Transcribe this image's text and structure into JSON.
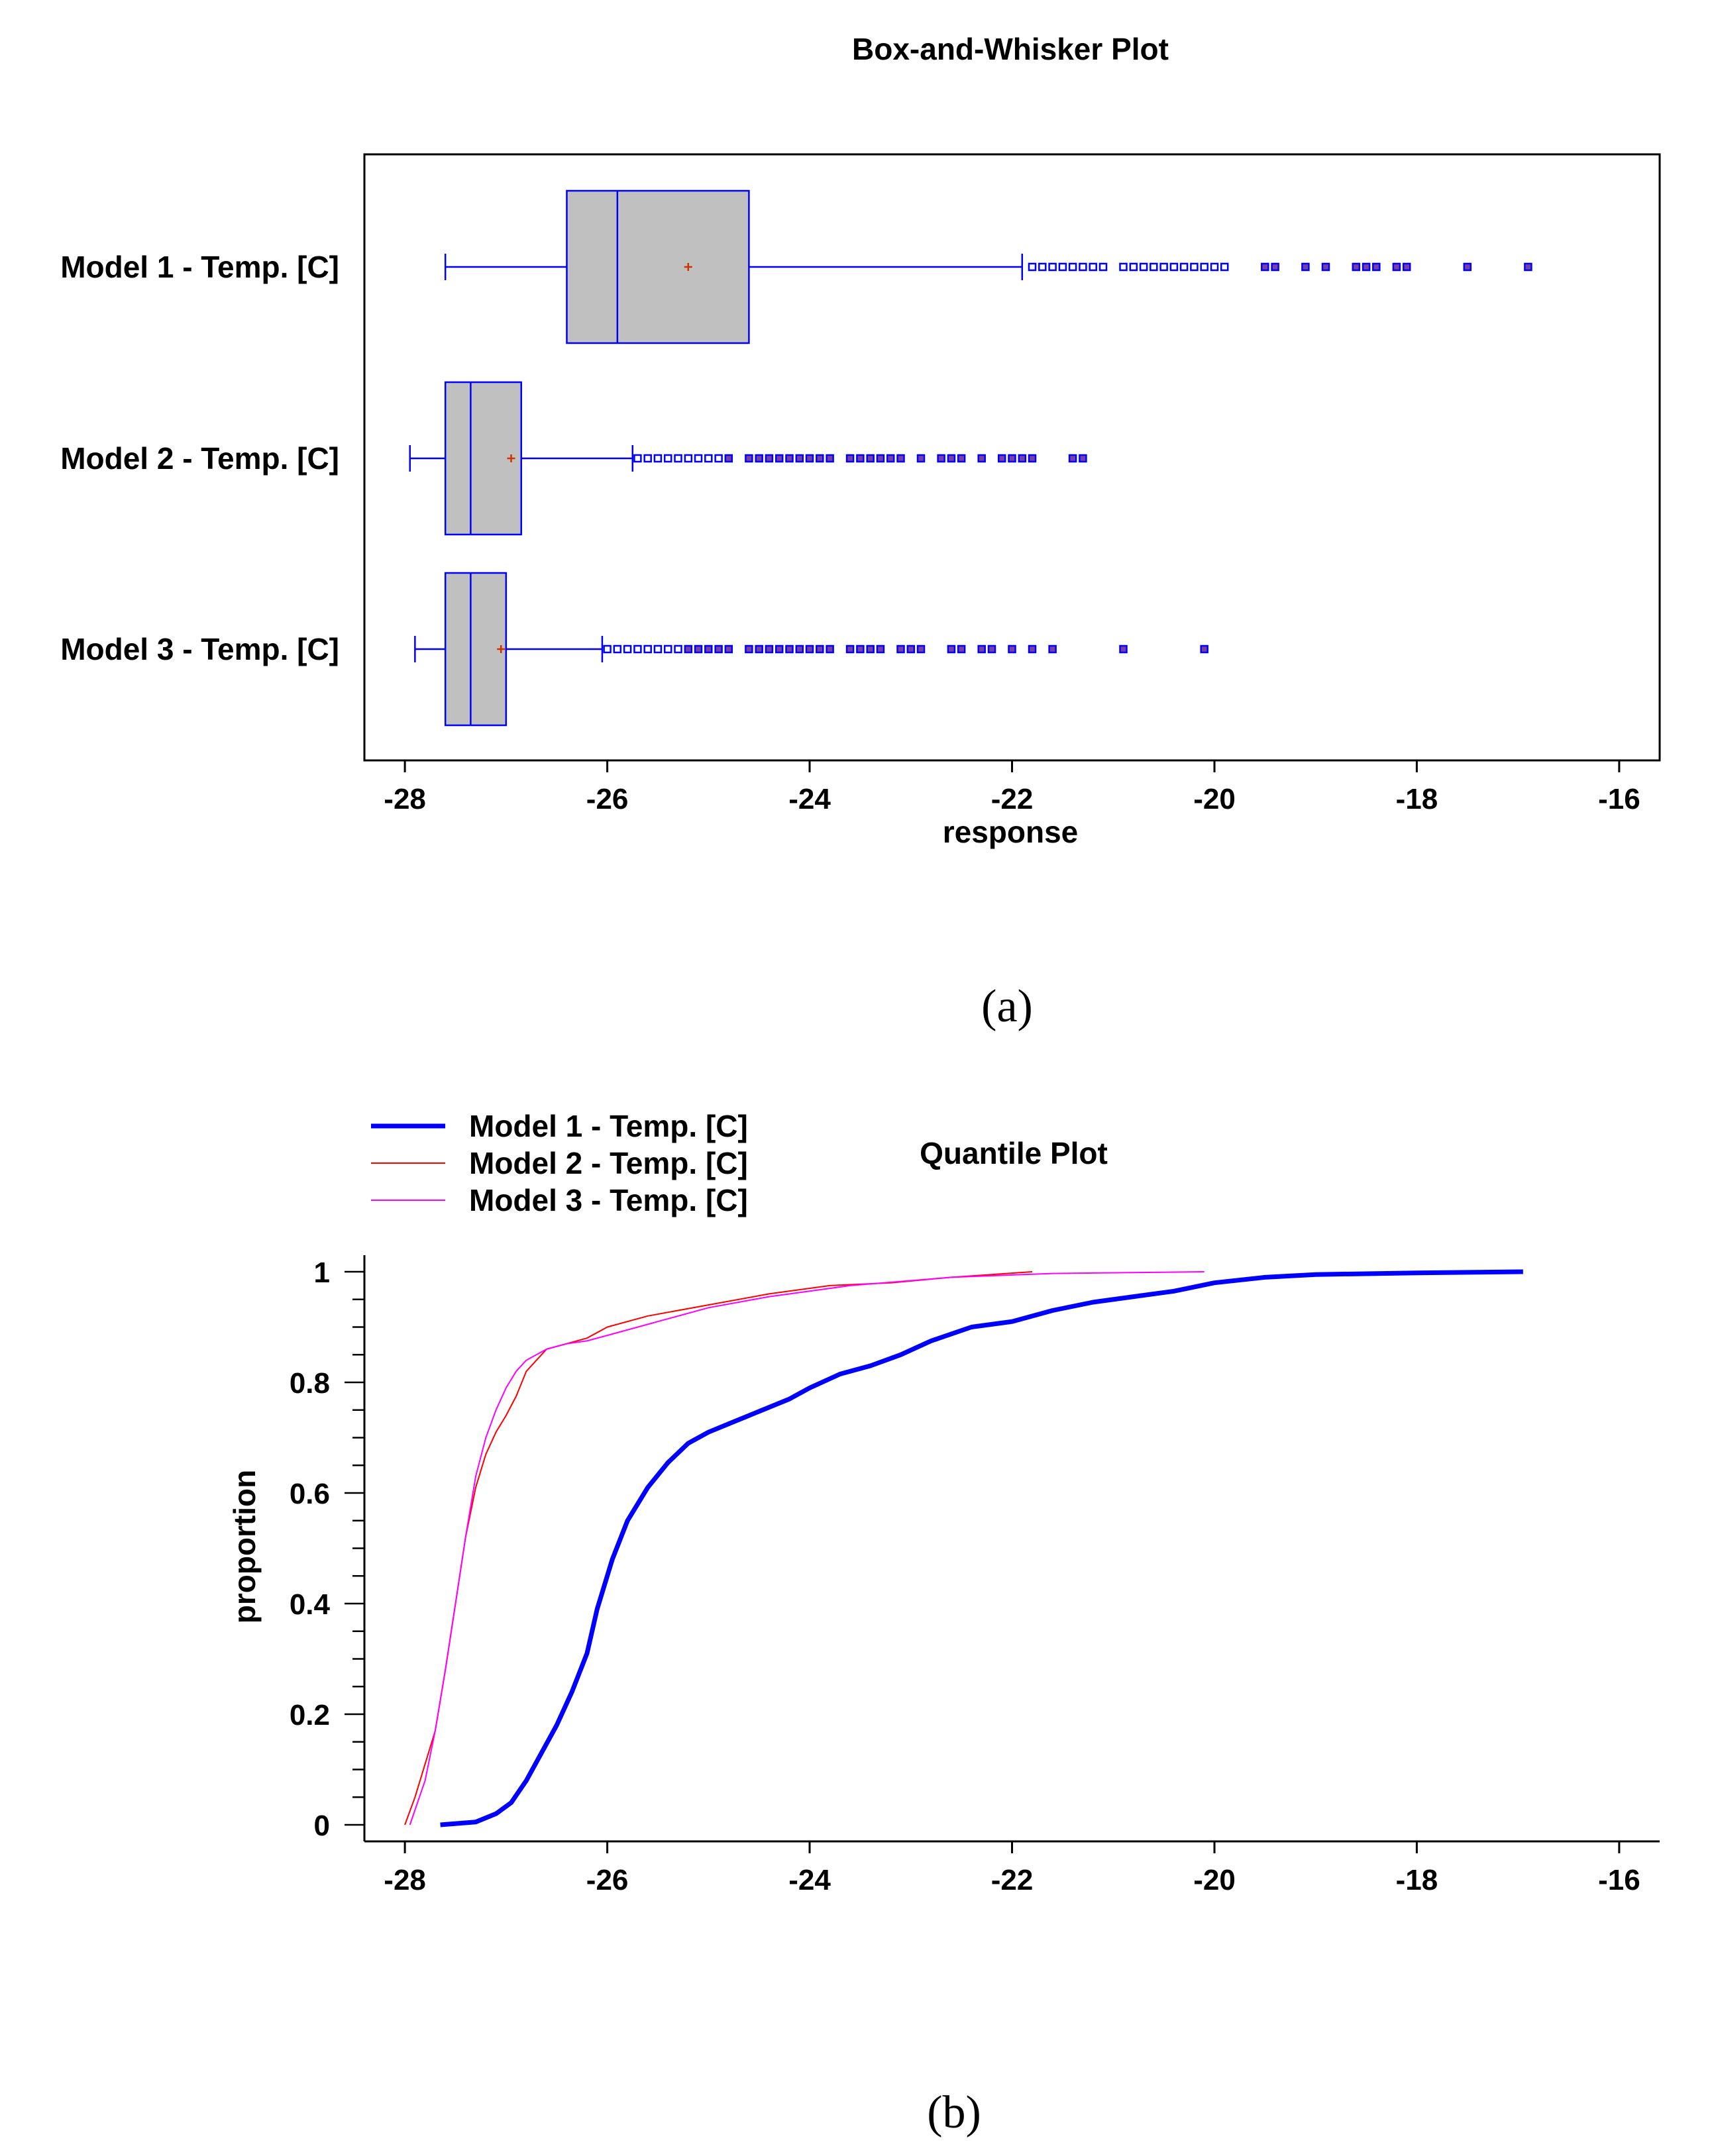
{
  "captions": {
    "a": "(a)",
    "b": "(b)"
  },
  "chart_data": [
    {
      "type": "box",
      "title": "Box-and-Whisker Plot",
      "xlabel": "response",
      "xlim": [
        -28.4,
        -15.6
      ],
      "xticks": [
        -28,
        -26,
        -24,
        -22,
        -20,
        -18,
        -16
      ],
      "colors": {
        "box_fill": "#c0c0c0",
        "box_stroke": "#0000ff",
        "mean_marker": "#cc3300",
        "outlier": "#0000ff",
        "outlier_far": "#7a3fa0"
      },
      "groups": [
        {
          "label": "Model 1 - Temp. [C]",
          "whisker_low": -27.6,
          "q1": -26.4,
          "median": -25.9,
          "mean": -25.2,
          "q3": -24.6,
          "whisker_high": -21.9,
          "outliers": [
            -21.8,
            -21.7,
            -21.6,
            -21.5,
            -21.4,
            -21.3,
            -21.2,
            -21.1,
            -20.9,
            -20.8,
            -20.7,
            -20.6,
            -20.5,
            -20.4,
            -20.3,
            -20.2,
            -20.1,
            -20.0,
            -19.9,
            -19.5,
            -19.4,
            -19.1,
            -18.9,
            -18.6,
            -18.5,
            -18.4,
            -18.2,
            -18.1,
            -17.5,
            -16.9
          ]
        },
        {
          "label": "Model 2 - Temp. [C]",
          "whisker_low": -27.95,
          "q1": -27.6,
          "median": -27.35,
          "mean": -26.95,
          "q3": -26.85,
          "whisker_high": -25.75,
          "outliers": [
            -25.7,
            -25.6,
            -25.5,
            -25.4,
            -25.3,
            -25.2,
            -25.1,
            -25.0,
            -24.9,
            -24.8,
            -24.6,
            -24.5,
            -24.4,
            -24.3,
            -24.2,
            -24.1,
            -24.0,
            -23.9,
            -23.8,
            -23.6,
            -23.5,
            -23.4,
            -23.3,
            -23.2,
            -23.1,
            -22.9,
            -22.7,
            -22.6,
            -22.5,
            -22.3,
            -22.1,
            -22.0,
            -21.9,
            -21.8,
            -21.4,
            -21.3
          ]
        },
        {
          "label": "Model 3 - Temp. [C]",
          "whisker_low": -27.9,
          "q1": -27.6,
          "median": -27.35,
          "mean": -27.05,
          "q3": -27.0,
          "whisker_high": -26.05,
          "outliers": [
            -26.0,
            -25.9,
            -25.8,
            -25.7,
            -25.6,
            -25.5,
            -25.4,
            -25.3,
            -25.2,
            -25.1,
            -25.0,
            -24.9,
            -24.8,
            -24.6,
            -24.5,
            -24.4,
            -24.3,
            -24.2,
            -24.1,
            -24.0,
            -23.9,
            -23.8,
            -23.6,
            -23.5,
            -23.4,
            -23.3,
            -23.1,
            -23.0,
            -22.9,
            -22.6,
            -22.5,
            -22.3,
            -22.2,
            -22.0,
            -21.8,
            -21.6,
            -20.9,
            -20.1
          ]
        }
      ]
    },
    {
      "type": "line",
      "title": "Quantile Plot",
      "xlabel": "",
      "ylabel": "proportion",
      "xlim": [
        -28.4,
        -15.6
      ],
      "ylim": [
        -0.03,
        1.03
      ],
      "xticks": [
        -28,
        -26,
        -24,
        -22,
        -20,
        -18,
        -16
      ],
      "yticks": [
        0,
        0.2,
        0.4,
        0.6,
        0.8,
        1
      ],
      "legend_position": "top-left",
      "series": [
        {
          "name": "Model 1 - Temp. [C]",
          "color": "#0000ff",
          "width": 7,
          "x": [
            -27.65,
            -27.3,
            -27.1,
            -26.95,
            -26.8,
            -26.65,
            -26.5,
            -26.35,
            -26.2,
            -26.1,
            -25.95,
            -25.8,
            -25.6,
            -25.4,
            -25.2,
            -25.0,
            -24.8,
            -24.6,
            -24.4,
            -24.2,
            -24.0,
            -23.7,
            -23.4,
            -23.1,
            -22.8,
            -22.4,
            -22.0,
            -21.6,
            -21.2,
            -20.8,
            -20.4,
            -20.0,
            -19.5,
            -19.0,
            -18.0,
            -16.95
          ],
          "y": [
            0.0,
            0.005,
            0.02,
            0.04,
            0.08,
            0.13,
            0.18,
            0.24,
            0.31,
            0.39,
            0.48,
            0.55,
            0.61,
            0.655,
            0.69,
            0.71,
            0.725,
            0.74,
            0.755,
            0.77,
            0.79,
            0.815,
            0.83,
            0.85,
            0.875,
            0.9,
            0.91,
            0.93,
            0.945,
            0.955,
            0.965,
            0.98,
            0.99,
            0.995,
            0.998,
            1.0
          ]
        },
        {
          "name": "Model 2 - Temp. [C]",
          "color": "#ff0000",
          "width": 2,
          "x": [
            -28.0,
            -27.9,
            -27.7,
            -27.6,
            -27.5,
            -27.4,
            -27.3,
            -27.2,
            -27.1,
            -27.0,
            -26.9,
            -26.8,
            -26.6,
            -26.4,
            -26.2,
            -26.0,
            -25.6,
            -25.0,
            -24.4,
            -23.8,
            -23.2,
            -22.6,
            -22.2,
            -21.8
          ],
          "y": [
            0.0,
            0.05,
            0.17,
            0.28,
            0.4,
            0.52,
            0.61,
            0.67,
            0.71,
            0.74,
            0.775,
            0.82,
            0.86,
            0.87,
            0.88,
            0.9,
            0.92,
            0.94,
            0.96,
            0.975,
            0.98,
            0.99,
            0.995,
            1.0
          ]
        },
        {
          "name": "Model 3 - Temp. [C]",
          "color": "#ff00ff",
          "width": 2,
          "x": [
            -27.95,
            -27.8,
            -27.7,
            -27.6,
            -27.5,
            -27.4,
            -27.3,
            -27.2,
            -27.1,
            -27.0,
            -26.9,
            -26.8,
            -26.6,
            -26.4,
            -26.2,
            -26.0,
            -25.6,
            -25.0,
            -24.4,
            -23.6,
            -22.6,
            -21.6,
            -20.1
          ],
          "y": [
            0.0,
            0.08,
            0.17,
            0.28,
            0.4,
            0.52,
            0.63,
            0.7,
            0.75,
            0.79,
            0.82,
            0.84,
            0.86,
            0.87,
            0.875,
            0.885,
            0.905,
            0.935,
            0.955,
            0.975,
            0.99,
            0.997,
            1.0
          ]
        }
      ]
    }
  ]
}
